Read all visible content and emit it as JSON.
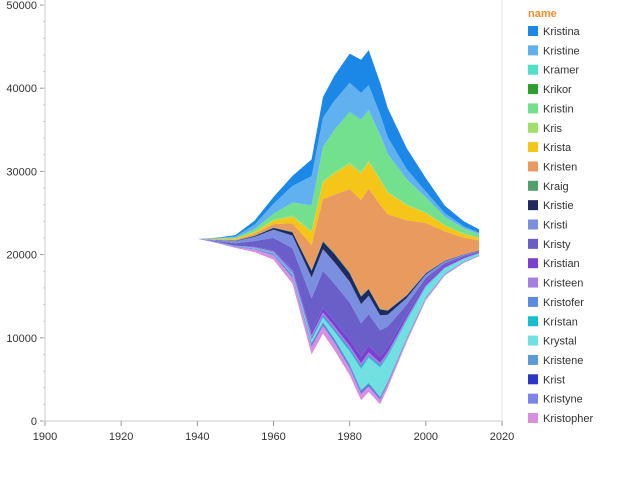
{
  "chart_data": {
    "type": "area",
    "subtype": "streamgraph",
    "title": "",
    "xlabel": "",
    "ylabel": "",
    "xlim": [
      1900,
      2020
    ],
    "ylim": [
      0,
      50000
    ],
    "x_ticks": [
      "1900",
      "1920",
      "1940",
      "1960",
      "1980",
      "2000",
      "2020"
    ],
    "y_ticks": [
      "0",
      "10000",
      "20000",
      "30000",
      "40000",
      "50000"
    ],
    "grid": false,
    "legend_title": "name",
    "legend_title_color": "#f28e2b",
    "legend_position": "right",
    "x": [
      1914,
      1940,
      1945,
      1950,
      1955,
      1960,
      1965,
      1970,
      1973,
      1976,
      1980,
      1983,
      1985,
      1988,
      1990,
      1995,
      2000,
      2005,
      2010,
      2014
    ],
    "baseline": [
      22000,
      21900,
      21400,
      20800,
      20300,
      19400,
      16500,
      8000,
      10500,
      8500,
      5500,
      2500,
      3500,
      2000,
      4000,
      9500,
      14500,
      17500,
      19000,
      19800
    ],
    "series": [
      {
        "name": "Kristopher",
        "color": "#d98ee0",
        "values": [
          0,
          0,
          50,
          100,
          300,
          500,
          700,
          900,
          900,
          900,
          800,
          700,
          600,
          500,
          400,
          300,
          200,
          100,
          80,
          60
        ]
      },
      {
        "name": "Kristyne",
        "color": "#7b86e8",
        "values": [
          0,
          0,
          20,
          40,
          60,
          100,
          150,
          200,
          200,
          200,
          200,
          200,
          180,
          150,
          120,
          80,
          60,
          40,
          30,
          20
        ]
      },
      {
        "name": "Krist",
        "color": "#2b36c9",
        "values": [
          0,
          0,
          10,
          20,
          30,
          50,
          80,
          100,
          100,
          100,
          100,
          100,
          90,
          80,
          70,
          50,
          40,
          30,
          20,
          20
        ]
      },
      {
        "name": "Kristene",
        "color": "#5b9bd5",
        "values": [
          0,
          0,
          20,
          40,
          60,
          100,
          150,
          200,
          200,
          220,
          250,
          250,
          230,
          200,
          180,
          120,
          80,
          60,
          40,
          30
        ]
      },
      {
        "name": "Krystal",
        "color": "#70e0e0",
        "values": [
          0,
          0,
          0,
          0,
          20,
          50,
          100,
          300,
          500,
          800,
          1500,
          2500,
          3000,
          3500,
          3000,
          2000,
          1200,
          600,
          300,
          200
        ]
      },
      {
        "name": "Krístan",
        "color": "#17becf",
        "values": [
          0,
          0,
          0,
          10,
          20,
          30,
          50,
          100,
          100,
          120,
          150,
          150,
          140,
          120,
          100,
          80,
          60,
          40,
          30,
          20
        ]
      },
      {
        "name": "Kristofer",
        "color": "#5b8ce0",
        "values": [
          0,
          0,
          10,
          20,
          50,
          100,
          200,
          300,
          300,
          300,
          300,
          300,
          280,
          250,
          220,
          150,
          100,
          60,
          40,
          30
        ]
      },
      {
        "name": "Kristeen",
        "color": "#a57fe0",
        "values": [
          0,
          0,
          10,
          20,
          40,
          80,
          150,
          250,
          250,
          250,
          250,
          250,
          230,
          200,
          180,
          120,
          80,
          60,
          40,
          30
        ]
      },
      {
        "name": "Kristian",
        "color": "#7b3fd1",
        "values": [
          0,
          0,
          10,
          20,
          50,
          100,
          200,
          400,
          500,
          600,
          700,
          800,
          800,
          700,
          600,
          400,
          300,
          200,
          150,
          100
        ]
      },
      {
        "name": "Kristy",
        "color": "#6a5fc9",
        "values": [
          0,
          0,
          100,
          300,
          700,
          1500,
          2500,
          4000,
          4500,
          4500,
          4500,
          4000,
          3800,
          3200,
          2500,
          1200,
          600,
          300,
          150,
          100
        ]
      },
      {
        "name": "Kristi",
        "color": "#7b8fe0",
        "values": [
          0,
          0,
          100,
          250,
          500,
          1000,
          1500,
          2500,
          2600,
          2600,
          2500,
          2300,
          2200,
          1800,
          1400,
          800,
          400,
          200,
          100,
          60
        ]
      },
      {
        "name": "Kristie",
        "color": "#1f2a60",
        "values": [
          0,
          0,
          20,
          50,
          100,
          200,
          400,
          800,
          900,
          1000,
          1000,
          900,
          800,
          700,
          500,
          300,
          150,
          80,
          40,
          30
        ]
      },
      {
        "name": "Kraig",
        "color": "#4fa06a",
        "values": [
          0,
          0,
          10,
          20,
          40,
          60,
          80,
          120,
          120,
          120,
          120,
          100,
          90,
          80,
          60,
          40,
          30,
          20,
          10,
          10
        ]
      },
      {
        "name": "Kristen",
        "color": "#e89a5f",
        "values": [
          0,
          0,
          50,
          100,
          200,
          400,
          1000,
          3000,
          5000,
          7000,
          10000,
          11500,
          12000,
          12500,
          11500,
          9000,
          6000,
          3500,
          2000,
          1200
        ]
      },
      {
        "name": "Krista",
        "color": "#f5c518",
        "values": [
          0,
          0,
          50,
          100,
          200,
          400,
          800,
          1500,
          2000,
          2500,
          3000,
          3200,
          3200,
          3000,
          2600,
          1800,
          1200,
          700,
          450,
          300
        ]
      },
      {
        "name": "Kris",
        "color": "#9fe06a",
        "values": [
          0,
          0,
          20,
          50,
          80,
          120,
          150,
          200,
          200,
          200,
          200,
          180,
          150,
          120,
          100,
          80,
          60,
          40,
          30,
          20
        ]
      },
      {
        "name": "Kristin",
        "color": "#72e08c",
        "values": [
          0,
          0,
          50,
          100,
          300,
          700,
          1500,
          3000,
          4000,
          5000,
          6000,
          6200,
          6000,
          5200,
          4500,
          3000,
          1800,
          1000,
          600,
          400
        ]
      },
      {
        "name": "Krikor",
        "color": "#2ca02c",
        "values": [
          0,
          0,
          0,
          0,
          5,
          10,
          20,
          30,
          30,
          30,
          30,
          30,
          30,
          20,
          20,
          10,
          10,
          10,
          5,
          5
        ]
      },
      {
        "name": "Kramer",
        "color": "#4ee0c8",
        "values": [
          0,
          0,
          0,
          0,
          10,
          20,
          30,
          40,
          40,
          50,
          60,
          60,
          60,
          50,
          40,
          30,
          20,
          20,
          30,
          40
        ]
      },
      {
        "name": "Kristine",
        "color": "#61b0f0",
        "values": [
          0,
          0,
          50,
          150,
          500,
          1200,
          2000,
          3500,
          3500,
          3500,
          3500,
          3200,
          3000,
          2500,
          2000,
          1200,
          700,
          400,
          250,
          150
        ]
      },
      {
        "name": "Kristina",
        "color": "#1b87e6",
        "values": [
          0,
          0,
          50,
          150,
          500,
          800,
          1200,
          2000,
          2500,
          3000,
          3500,
          4000,
          4200,
          3800,
          3500,
          2500,
          1600,
          900,
          600,
          400
        ]
      }
    ]
  },
  "legend_order": [
    "Kristina",
    "Kristine",
    "Kramer",
    "Krikor",
    "Kristin",
    "Kris",
    "Krista",
    "Kristen",
    "Kraig",
    "Kristie",
    "Kristi",
    "Kristy",
    "Kristian",
    "Kristeen",
    "Kristofer",
    "Krístan",
    "Krystal",
    "Kristene",
    "Krist",
    "Kristyne",
    "Kristopher"
  ]
}
